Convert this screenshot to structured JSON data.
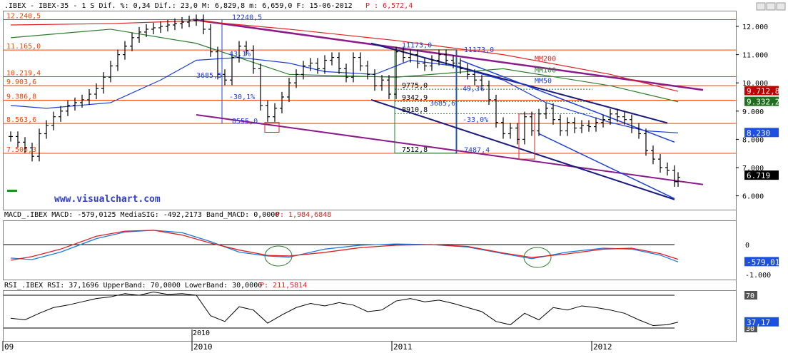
{
  "colors": {
    "price": "#000000",
    "hline": "#ff4000",
    "mm200": "#e02020",
    "mm100": "#2e7d2e",
    "mm50": "#1a3fd8",
    "channel_purple": "#8b1a8b",
    "trend_navy": "#1a1a80",
    "trend_blue": "#1a3fd8",
    "fib_green": "#2e7d2e",
    "measure_blue": "#2040e0",
    "macd_line": "#1e7be0",
    "macd_signal": "#e02020",
    "rsi_line": "#000000",
    "axis_box_black": "#000000",
    "axis_box_green": "#1e6e1e",
    "axis_box_red": "#c00000",
    "axis_box_blue": "#1e50e0",
    "header_red": "#e02020",
    "watermark": "#3040c8"
  },
  "header": {
    "main": ".IBEX - IBEX-35 -  1 S Dif. %: 0,34 Dif.: 23,0 M: 6,829,8 m: 6,659,0 F: 15-06-2012",
    "price": "P : 6,572,4",
    "macd": "MACD_.IBEX MACD: -579,0125 MediaSIG: -492,2173 Band_MACD: 0,0000",
    "macd_price": "P: 1,984,6848",
    "rsi": "RSI_.IBEX RSI: 37,1696 UpperBand: 70,0000 LowerBand: 30,0000",
    "rsi_price": "P: 211,5814"
  },
  "watermark": "www.visualchart.com",
  "main_axis": {
    "ticks": [
      "12.000",
      "11.000",
      "10.000",
      "9.000",
      "8.000",
      "7.000",
      "6.000"
    ],
    "boxes": [
      {
        "label": "9.712,8",
        "value": 9712.8,
        "color": "axis_box_red"
      },
      {
        "label": "9.332,2",
        "value": 9332.2,
        "color": "axis_box_green"
      },
      {
        "label": "8.230",
        "value": 8230,
        "color": "axis_box_blue"
      },
      {
        "label": "6.719",
        "value": 6719,
        "color": "axis_box_black"
      }
    ]
  },
  "macd_axis": {
    "ticks": [
      {
        "label": "0",
        "value": 0
      },
      {
        "label": "-1.000",
        "value": -1000
      }
    ],
    "boxes": [
      {
        "label": "-579,01",
        "value": -579,
        "color": "axis_box_blue"
      }
    ]
  },
  "rsi_axis": {
    "ticks": [
      {
        "label": "70",
        "value": 70
      },
      {
        "label": "30",
        "value": 30
      }
    ],
    "boxes": [
      {
        "label": "37,17",
        "value": 37.17,
        "color": "axis_box_blue"
      }
    ]
  },
  "time_axis": [
    {
      "label": "09",
      "t": 0
    },
    {
      "label": "2010",
      "t": 265
    },
    {
      "label": "2011",
      "t": 545
    },
    {
      "label": "2012",
      "t": 825
    }
  ],
  "rsi_year_label": {
    "label": "2010",
    "t": 265
  },
  "price_levels": [
    {
      "label": "12.240,5",
      "value": 12240.5
    },
    {
      "label": "11.165,0",
      "value": 11165
    },
    {
      "label": "10.219,4",
      "value": 10219.4
    },
    {
      "label": "9.903,6",
      "value": 9903.6
    },
    {
      "label": "9.386,8",
      "value": 9386.8
    },
    {
      "label": "8.563,6",
      "value": 8563.6
    },
    {
      "label": "7.505,3",
      "value": 7505.3
    }
  ],
  "annotations": [
    {
      "label": "12240,5",
      "t": 320,
      "value": 12240
    },
    {
      "label": "3685,5",
      "t": 270,
      "value": 10180
    },
    {
      "label": "43,1%",
      "t": 316,
      "value": 10950
    },
    {
      "label": "-30,1%",
      "t": 316,
      "value": 9420
    },
    {
      "label": "8555,0",
      "t": 320,
      "value": 8560
    },
    {
      "label": "11173,0",
      "t": 558,
      "value": 11260
    },
    {
      "label": "11173,0",
      "t": 645,
      "value": 11090
    },
    {
      "label": "9775,0",
      "t": 558,
      "value": 9830
    },
    {
      "label": "49,3%",
      "t": 643,
      "value": 9720
    },
    {
      "label": "9342,9",
      "t": 558,
      "value": 9400
    },
    {
      "label": "3685,6",
      "t": 597,
      "value": 9200
    },
    {
      "label": "8910,8",
      "t": 558,
      "value": 8970
    },
    {
      "label": "-33,0%",
      "t": 643,
      "value": 8610
    },
    {
      "label": "7512,8",
      "t": 558,
      "value": 7550
    },
    {
      "label": "7487,4",
      "t": 645,
      "value": 7540
    },
    {
      "label": "MM200",
      "t": 744,
      "value": 10770
    },
    {
      "label": "MM100",
      "t": 744,
      "value": 10370
    },
    {
      "label": "MM50",
      "t": 744,
      "value": 9990
    }
  ],
  "chart_data": [
    {
      "type": "line",
      "title": ".IBEX - IBEX-35 - 1 S",
      "ylim": [
        5500,
        12500
      ],
      "xlim": [
        0,
        1030
      ],
      "grid": false,
      "series": [
        {
          "name": "IBEX-35",
          "kind": "ohlc-weekly",
          "x": [
            10,
            20,
            30,
            40,
            50,
            60,
            70,
            80,
            90,
            100,
            110,
            120,
            130,
            140,
            150,
            160,
            170,
            180,
            190,
            200,
            210,
            220,
            230,
            240,
            250,
            260,
            270,
            280,
            290,
            300,
            310,
            320,
            330,
            340,
            350,
            360,
            370,
            380,
            390,
            400,
            410,
            420,
            430,
            440,
            450,
            460,
            470,
            480,
            490,
            500,
            510,
            520,
            530,
            540,
            550,
            560,
            570,
            580,
            590,
            600,
            610,
            620,
            630,
            640,
            650,
            660,
            670,
            680,
            690,
            700,
            710,
            720,
            730,
            740,
            750,
            760,
            770,
            780,
            790,
            800,
            810,
            820,
            830,
            840,
            850,
            860,
            870,
            880,
            890,
            900,
            910,
            920,
            930,
            940,
            945
          ],
          "y": [
            8100,
            7900,
            7700,
            7400,
            8200,
            8500,
            8800,
            9000,
            9200,
            9300,
            9400,
            9600,
            9800,
            10200,
            10600,
            11000,
            11300,
            11600,
            11800,
            11900,
            11950,
            12000,
            12050,
            12100,
            12150,
            12200,
            12240,
            11900,
            11100,
            10300,
            10100,
            10900,
            11300,
            11150,
            10500,
            9200,
            8800,
            9100,
            9500,
            10000,
            10300,
            10600,
            10700,
            10500,
            10800,
            10900,
            10500,
            10200,
            10900,
            10600,
            10300,
            9900,
            10100,
            9600,
            11100,
            10900,
            11000,
            10700,
            10600,
            10800,
            11000,
            10800,
            10700,
            10500,
            10300,
            10100,
            9900,
            9400,
            8600,
            8200,
            8400,
            8000,
            8800,
            8300,
            8900,
            9100,
            8700,
            8300,
            8600,
            8400,
            8500,
            8450,
            8600,
            8700,
            8900,
            8800,
            8700,
            8400,
            8200,
            7600,
            7300,
            7000,
            6900,
            6500,
            6659
          ]
        },
        {
          "name": "MM200",
          "x": [
            10,
            150,
            270,
            400,
            550,
            700,
            850,
            945
          ],
          "y": [
            12050,
            12100,
            12200,
            11900,
            11500,
            11000,
            10300,
            9700
          ]
        },
        {
          "name": "MM100",
          "x": [
            10,
            150,
            270,
            400,
            550,
            700,
            850,
            945
          ],
          "y": [
            11600,
            11900,
            11400,
            10300,
            10200,
            10500,
            9900,
            9330
          ]
        },
        {
          "name": "MM50",
          "x": [
            10,
            60,
            150,
            220,
            270,
            330,
            400,
            450,
            520,
            570,
            630,
            700,
            760,
            850,
            900,
            945
          ],
          "y": [
            9200,
            9100,
            9300,
            10100,
            10800,
            10900,
            10700,
            10400,
            10300,
            10800,
            10600,
            10100,
            9300,
            8600,
            8300,
            8230
          ]
        },
        {
          "name": "MACD",
          "x": [
            10,
            40,
            80,
            130,
            170,
            210,
            250,
            290,
            330,
            370,
            400,
            450,
            500,
            550,
            600,
            650,
            700,
            740,
            790,
            840,
            880,
            920,
            945
          ],
          "y": [
            -450,
            -500,
            -250,
            200,
            420,
            480,
            400,
            100,
            -250,
            -380,
            -420,
            -150,
            -20,
            20,
            0,
            -80,
            -300,
            -470,
            -250,
            -120,
            -150,
            -350,
            -579
          ]
        },
        {
          "name": "MediaSIG",
          "x": [
            10,
            40,
            80,
            130,
            170,
            210,
            250,
            290,
            330,
            370,
            400,
            450,
            500,
            550,
            600,
            650,
            700,
            740,
            790,
            840,
            880,
            920,
            945
          ],
          "y": [
            -520,
            -400,
            -150,
            280,
            450,
            480,
            320,
            50,
            -180,
            -360,
            -380,
            -260,
            -100,
            -20,
            0,
            -60,
            -280,
            -430,
            -310,
            -150,
            -120,
            -300,
            -492
          ]
        },
        {
          "name": "RSI",
          "x": [
            10,
            30,
            50,
            70,
            90,
            110,
            130,
            150,
            170,
            190,
            210,
            230,
            250,
            270,
            290,
            310,
            330,
            350,
            370,
            390,
            410,
            430,
            450,
            470,
            490,
            510,
            530,
            550,
            570,
            590,
            610,
            630,
            650,
            670,
            690,
            710,
            730,
            750,
            770,
            790,
            810,
            830,
            850,
            870,
            890,
            910,
            930,
            945
          ],
          "y": [
            42,
            40,
            48,
            55,
            58,
            62,
            66,
            68,
            72,
            70,
            74,
            71,
            72,
            70,
            45,
            38,
            56,
            52,
            36,
            46,
            55,
            60,
            57,
            61,
            58,
            50,
            52,
            63,
            66,
            62,
            64,
            60,
            55,
            50,
            38,
            34,
            48,
            40,
            55,
            52,
            57,
            55,
            52,
            48,
            40,
            33,
            34,
            37.17
          ]
        }
      ],
      "hlines": {
        "macd": [
          0
        ],
        "rsi": [
          70,
          30
        ]
      }
    }
  ]
}
